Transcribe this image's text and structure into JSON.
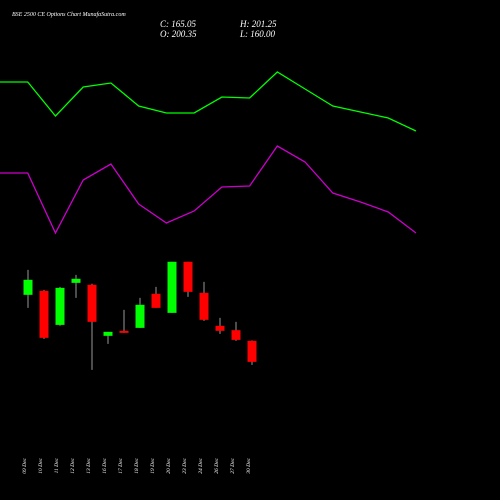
{
  "header": {
    "title": "BSE 2500 CE Options Chart MunafaSutra.com",
    "close": "C: 165.05",
    "high": "H: 201.25",
    "open": "O: 200.35",
    "low": "L: 160.00"
  },
  "chart_data": [
    {
      "type": "line",
      "x": [
        0,
        1,
        2,
        3,
        4,
        5,
        6,
        7,
        8,
        9,
        10,
        11,
        12,
        13,
        14,
        15
      ],
      "xlim": [
        0,
        15
      ],
      "ylim": [
        0,
        190
      ],
      "series": [
        {
          "color": "#00ff00",
          "values": [
            168,
            168,
            134,
            163,
            167,
            144,
            137,
            137,
            153,
            152,
            178,
            161,
            144,
            138,
            132,
            119
          ]
        },
        {
          "color": "#cc00cc",
          "values": [
            77,
            77,
            17,
            70,
            86,
            46,
            27,
            39,
            63,
            64,
            104,
            88,
            57,
            48,
            38,
            17
          ]
        }
      ]
    },
    {
      "type": "candlestick",
      "ylim": [
        143,
        353
      ],
      "up_color": "#00ff00",
      "down_color": "#ff0000",
      "categories": [
        "09 Dec",
        "10 Dec",
        "11 Dec",
        "12 Dec",
        "13 Dec",
        "16 Dec",
        "17 Dec",
        "18 Dec",
        "19 Dec",
        "20 Dec",
        "23 Dec",
        "24 Dec",
        "26 Dec",
        "27 Dec",
        "30 Dec"
      ],
      "open": [
        277.7,
        284.4,
        227.2,
        297.8,
        294.5,
        208.8,
        217.2,
        222.2,
        279.4,
        247.4,
        333.2,
        281.0,
        225.6,
        218.3,
        200.35
      ],
      "high": [
        319.7,
        286.1,
        291.1,
        311.3,
        296.2,
        215.5,
        252.5,
        272.6,
        291.1,
        333.2,
        333.2,
        299.5,
        239.0,
        232.3,
        201.25
      ],
      "low": [
        255.8,
        203.7,
        225.6,
        272.6,
        151.6,
        195.3,
        213.8,
        222.2,
        255.8,
        247.4,
        274.3,
        234.0,
        212.1,
        200.35,
        160.0
      ],
      "close": [
        302.9,
        205.4,
        289.4,
        304.6,
        232.3,
        215.5,
        213.8,
        260.9,
        255.8,
        333.2,
        282.7,
        235.7,
        217.2,
        202.0,
        165.05
      ]
    }
  ]
}
